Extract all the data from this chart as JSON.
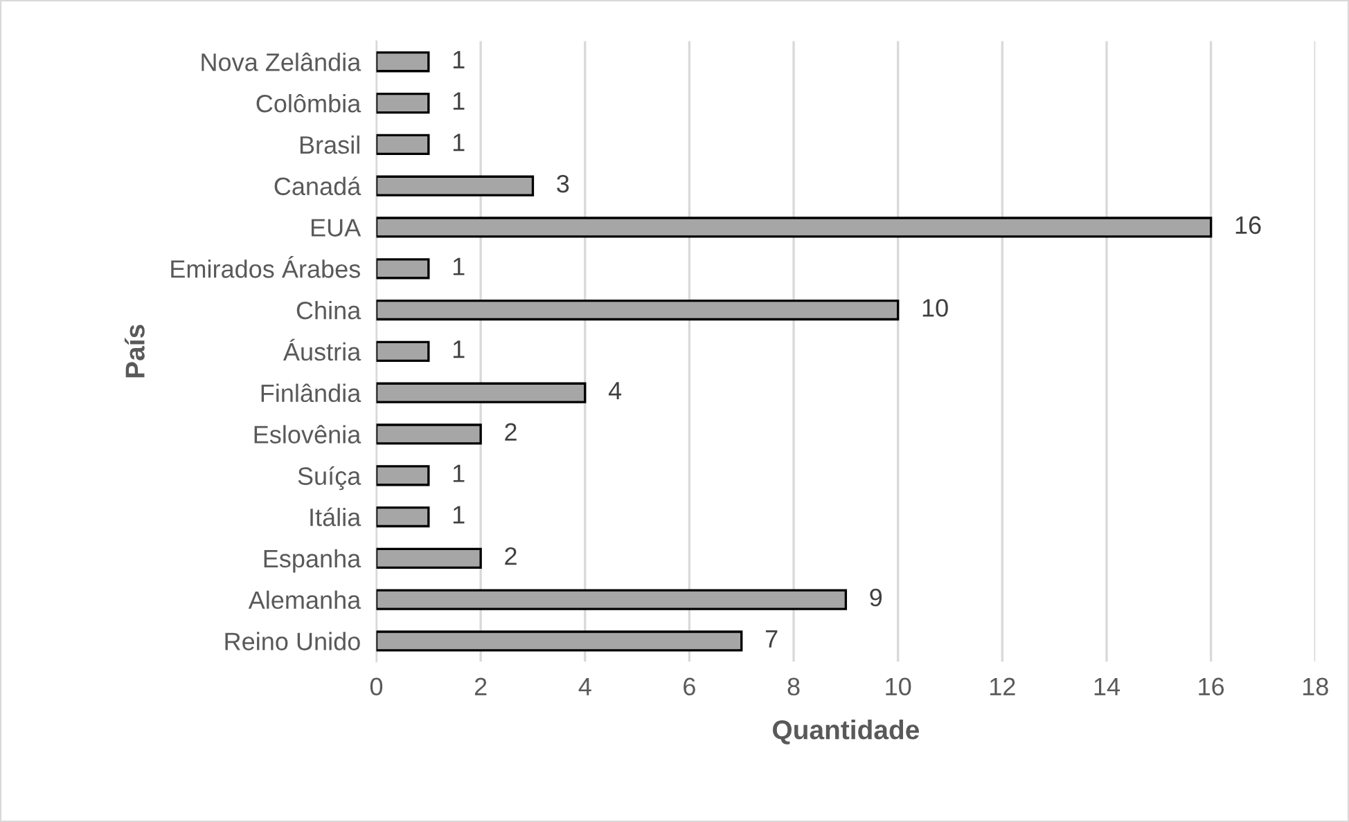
{
  "chart_data": {
    "type": "bar",
    "orientation": "horizontal",
    "xlabel": "Quantidade",
    "ylabel": "País",
    "categories": [
      "Nova Zelândia",
      "Colômbia",
      "Brasil",
      "Canadá",
      "EUA",
      "Emirados Árabes",
      "China",
      "Áustria",
      "Finlândia",
      "Eslovênia",
      "Suíça",
      "Itália",
      "Espanha",
      "Alemanha",
      "Reino Unido"
    ],
    "values": [
      1,
      1,
      1,
      3,
      16,
      1,
      10,
      1,
      4,
      2,
      1,
      1,
      2,
      9,
      7
    ],
    "color": "#a6a6a6",
    "xlim": [
      0,
      18
    ],
    "xticks": [
      0,
      2,
      4,
      6,
      8,
      10,
      12,
      14,
      16,
      18
    ],
    "grid": "x",
    "data_labels": true,
    "legend": false
  }
}
